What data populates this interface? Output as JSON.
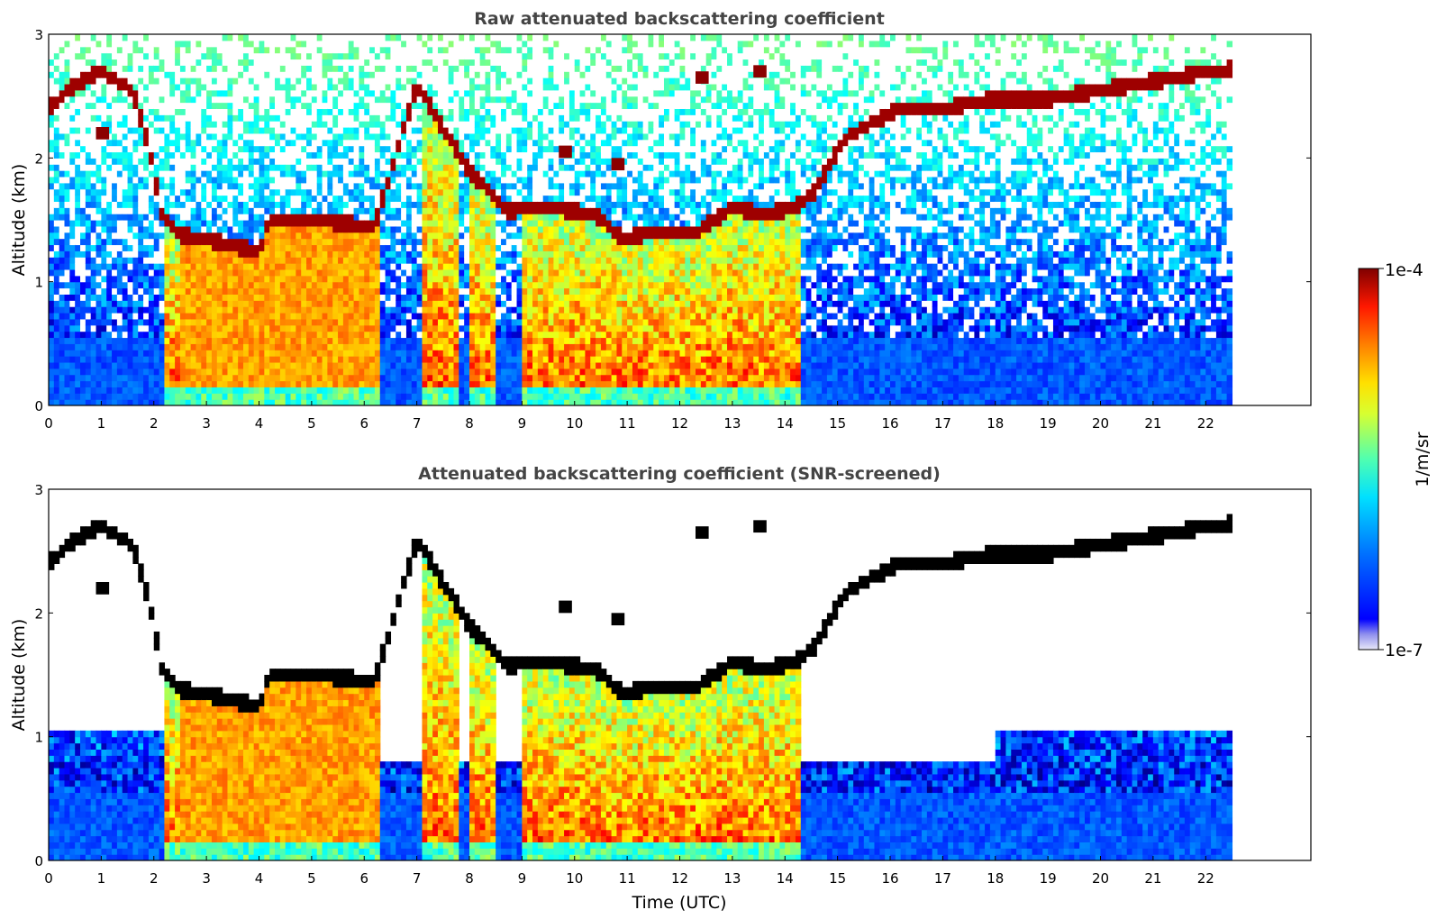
{
  "chart_data": [
    {
      "type": "heatmap",
      "title": "Raw attenuated backscattering coefficient",
      "xlabel": "",
      "ylabel": "Altitude (km)",
      "xlim": [
        0,
        24
      ],
      "ylim": [
        0,
        3
      ],
      "x_ticks": [
        "0",
        "1",
        "2",
        "3",
        "4",
        "5",
        "6",
        "7",
        "8",
        "9",
        "10",
        "11",
        "12",
        "13",
        "14",
        "15",
        "16",
        "17",
        "18",
        "19",
        "20",
        "21",
        "22"
      ],
      "y_ticks": [
        "0",
        "1",
        "2",
        "3"
      ],
      "data_extent_x": [
        0,
        22.5
      ],
      "screened": false
    },
    {
      "type": "heatmap",
      "title": "Attenuated backscattering coefficient (SNR-screened)",
      "xlabel": "Time (UTC)",
      "ylabel": "Altitude (km)",
      "xlim": [
        0,
        24
      ],
      "ylim": [
        0,
        3
      ],
      "x_ticks": [
        "0",
        "1",
        "2",
        "3",
        "4",
        "5",
        "6",
        "7",
        "8",
        "9",
        "10",
        "11",
        "12",
        "13",
        "14",
        "15",
        "16",
        "17",
        "18",
        "19",
        "20",
        "21",
        "22"
      ],
      "y_ticks": [
        "0",
        "1",
        "2",
        "3"
      ],
      "data_extent_x": [
        0,
        22.5
      ],
      "screened": true
    }
  ],
  "colorbar": {
    "label": "1/m/sr",
    "min_label": "1e-7",
    "max_label": "1e-4",
    "scale": "log",
    "colormap": "jet",
    "low_color": "#e8e8f8",
    "high_color": "#7f0000"
  },
  "features": {
    "cloud_top": [
      [
        0,
        2.4
      ],
      [
        0.5,
        2.6
      ],
      [
        1,
        2.7
      ],
      [
        1.6,
        2.55
      ],
      [
        1.9,
        2.1
      ],
      [
        2.15,
        1.55
      ],
      [
        2.5,
        1.38
      ],
      [
        3.5,
        1.3
      ],
      [
        4,
        1.25
      ],
      [
        4.2,
        1.5
      ],
      [
        5,
        1.5
      ],
      [
        6.2,
        1.45
      ],
      [
        7,
        2.6
      ],
      [
        8,
        1.9
      ],
      [
        8.7,
        1.58
      ],
      [
        9.5,
        1.6
      ],
      [
        10.4,
        1.55
      ],
      [
        10.9,
        1.35
      ],
      [
        11.5,
        1.4
      ],
      [
        12.3,
        1.4
      ],
      [
        13,
        1.6
      ],
      [
        13.6,
        1.55
      ],
      [
        14.2,
        1.6
      ],
      [
        14.6,
        1.75
      ],
      [
        15.1,
        2.15
      ],
      [
        15.7,
        2.3
      ],
      [
        16.2,
        2.4
      ],
      [
        17,
        2.4
      ],
      [
        18,
        2.48
      ],
      [
        19,
        2.48
      ],
      [
        20,
        2.55
      ],
      [
        21,
        2.62
      ],
      [
        22,
        2.7
      ],
      [
        22.5,
        2.72
      ]
    ],
    "fog_segments": [
      [
        2.25,
        6.35
      ],
      [
        7.1,
        7.8
      ],
      [
        8.0,
        8.5
      ],
      [
        9.0,
        14.35
      ]
    ],
    "high_cirrus": [
      [
        9.7,
        2.05
      ],
      [
        10.7,
        1.95
      ],
      [
        12.3,
        2.65
      ],
      [
        13.4,
        2.7
      ]
    ],
    "small_cloud": [
      [
        0.9,
        2.2
      ]
    ]
  }
}
